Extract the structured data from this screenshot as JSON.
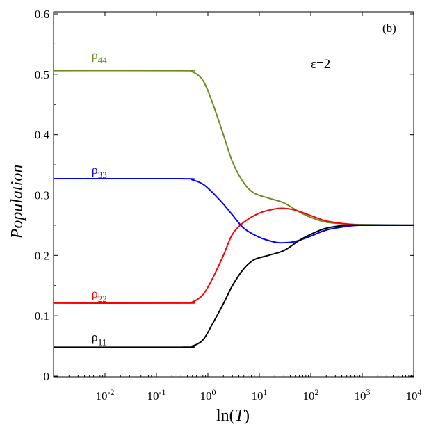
{
  "chart_data": {
    "type": "line",
    "panel_label": "(b)",
    "annotation": "ε=2",
    "xlabel_prefix": "ln(",
    "xlabel_var": "T",
    "xlabel_suffix": ")",
    "ylabel": "Population",
    "x_scale": "log",
    "xlim": [
      0.001,
      10000
    ],
    "ylim": [
      0,
      0.6
    ],
    "x_ticks": [
      {
        "base": "10",
        "exp": "-2",
        "value": 0.01
      },
      {
        "base": "10",
        "exp": "-1",
        "value": 0.1
      },
      {
        "base": "10",
        "exp": "0",
        "value": 1
      },
      {
        "base": "10",
        "exp": "1",
        "value": 10
      },
      {
        "base": "10",
        "exp": "2",
        "value": 100
      },
      {
        "base": "10",
        "exp": "3",
        "value": 1000
      },
      {
        "base": "10",
        "exp": "4",
        "value": 10000
      }
    ],
    "y_ticks": [
      {
        "label": "0",
        "value": 0
      },
      {
        "label": "0.1",
        "value": 0.1
      },
      {
        "label": "0.2",
        "value": 0.2
      },
      {
        "label": "0.3",
        "value": 0.3
      },
      {
        "label": "0.4",
        "value": 0.4
      },
      {
        "label": "0.5",
        "value": 0.5
      },
      {
        "label": "0.6",
        "value": 0.6
      }
    ],
    "series": [
      {
        "name": "ρ44",
        "label_main": "ρ",
        "label_sub": "44",
        "color": "#6b8e23",
        "label_at": [
          0.0055,
          0.525
        ],
        "points": [
          [
            0.001,
            0.506
          ],
          [
            0.3,
            0.506
          ],
          [
            0.5,
            0.504
          ],
          [
            0.8,
            0.49
          ],
          [
            1.2,
            0.455
          ],
          [
            2,
            0.4
          ],
          [
            3,
            0.355
          ],
          [
            5,
            0.32
          ],
          [
            8,
            0.303
          ],
          [
            15,
            0.295
          ],
          [
            30,
            0.287
          ],
          [
            60,
            0.272
          ],
          [
            100,
            0.263
          ],
          [
            200,
            0.255
          ],
          [
            500,
            0.252
          ],
          [
            1000,
            0.251
          ],
          [
            10000,
            0.25
          ]
        ]
      },
      {
        "name": "ρ33",
        "label_main": "ρ",
        "label_sub": "33",
        "color": "#0000ff",
        "label_at": [
          0.0055,
          0.335
        ],
        "points": [
          [
            0.001,
            0.327
          ],
          [
            0.3,
            0.327
          ],
          [
            0.5,
            0.325
          ],
          [
            0.8,
            0.318
          ],
          [
            1.2,
            0.305
          ],
          [
            2,
            0.285
          ],
          [
            3,
            0.267
          ],
          [
            5,
            0.245
          ],
          [
            10,
            0.23
          ],
          [
            20,
            0.222
          ],
          [
            30,
            0.221
          ],
          [
            50,
            0.223
          ],
          [
            100,
            0.232
          ],
          [
            200,
            0.242
          ],
          [
            500,
            0.248
          ],
          [
            1000,
            0.25
          ],
          [
            10000,
            0.25
          ]
        ]
      },
      {
        "name": "ρ22",
        "label_main": "ρ",
        "label_sub": "22",
        "color": "#ff0000",
        "label_at": [
          0.0055,
          0.13
        ],
        "points": [
          [
            0.001,
            0.121
          ],
          [
            0.3,
            0.121
          ],
          [
            0.5,
            0.123
          ],
          [
            0.8,
            0.135
          ],
          [
            1.2,
            0.16
          ],
          [
            2,
            0.2
          ],
          [
            3,
            0.235
          ],
          [
            5,
            0.255
          ],
          [
            10,
            0.27
          ],
          [
            20,
            0.277
          ],
          [
            30,
            0.278
          ],
          [
            50,
            0.275
          ],
          [
            100,
            0.266
          ],
          [
            200,
            0.257
          ],
          [
            500,
            0.252
          ],
          [
            1000,
            0.25
          ],
          [
            10000,
            0.25
          ]
        ]
      },
      {
        "name": "ρ11",
        "label_main": "ρ",
        "label_sub": "11",
        "color": "#000000",
        "label_at": [
          0.0055,
          0.058
        ],
        "points": [
          [
            0.001,
            0.048
          ],
          [
            0.3,
            0.048
          ],
          [
            0.5,
            0.05
          ],
          [
            0.8,
            0.06
          ],
          [
            1.2,
            0.085
          ],
          [
            2,
            0.12
          ],
          [
            3,
            0.15
          ],
          [
            5,
            0.178
          ],
          [
            8,
            0.193
          ],
          [
            15,
            0.2
          ],
          [
            30,
            0.208
          ],
          [
            60,
            0.225
          ],
          [
            100,
            0.235
          ],
          [
            200,
            0.245
          ],
          [
            500,
            0.25
          ],
          [
            1000,
            0.25
          ],
          [
            10000,
            0.25
          ]
        ]
      }
    ]
  }
}
